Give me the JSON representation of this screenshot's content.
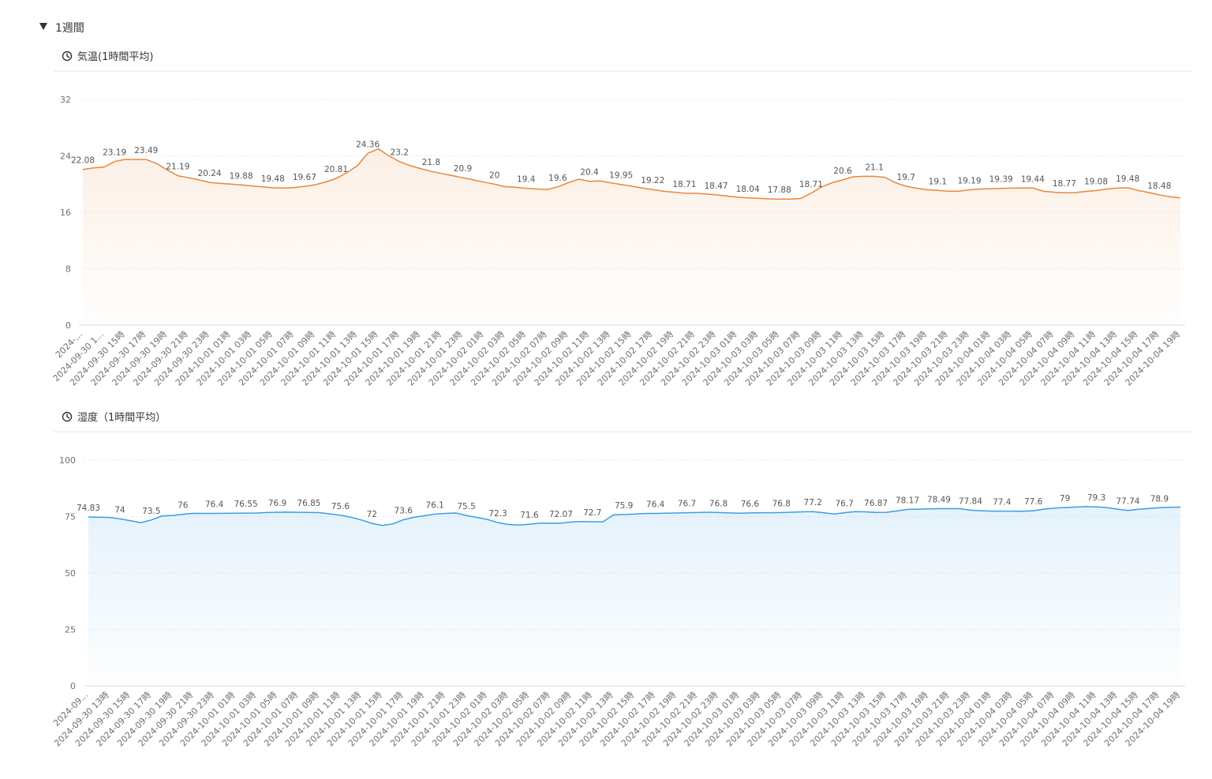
{
  "header": {
    "title": "1週間"
  },
  "chart_data": [
    {
      "type": "line",
      "title": "気温(1時間平均)",
      "color": "#e8873a",
      "ylim": [
        0,
        32
      ],
      "yticks": [
        0,
        8,
        16,
        24,
        32
      ],
      "grid": true,
      "categories": [
        "2024-...",
        null,
        "2024-09-30 1...",
        null,
        "2024-09-30 15時",
        null,
        "2024-09-30 17時",
        null,
        "2024-09-30 19時",
        null,
        "2024-09-30 21時",
        null,
        "2024-09-30 23時",
        null,
        "2024-10-01 01時",
        null,
        "2024-10-01 03時",
        null,
        "2024-10-01 05時",
        null,
        "2024-10-01 07時",
        null,
        "2024-10-01 09時",
        null,
        "2024-10-01 11時",
        null,
        "2024-10-01 13時",
        null,
        "2024-10-01 15時",
        null,
        "2024-10-01 17時",
        null,
        "2024-10-01 19時",
        null,
        "2024-10-01 21時",
        null,
        "2024-10-01 23時",
        null,
        "2024-10-02 01時",
        null,
        "2024-10-02 03時",
        null,
        "2024-10-02 05時",
        null,
        "2024-10-02 07時",
        null,
        "2024-10-02 09時",
        null,
        "2024-10-02 11時",
        null,
        "2024-10-02 13時",
        null,
        "2024-10-02 15時",
        null,
        "2024-10-02 17時",
        null,
        "2024-10-02 19時",
        null,
        "2024-10-02 21時",
        null,
        "2024-10-02 23時",
        null,
        "2024-10-03 01時",
        null,
        "2024-10-03 03時",
        null,
        "2024-10-03 05時",
        null,
        "2024-10-03 07時",
        null,
        "2024-10-03 09時",
        null,
        "2024-10-03 11時",
        null,
        "2024-10-03 13時",
        null,
        "2024-10-03 15時",
        null,
        "2024-10-03 17時",
        null,
        "2024-10-03 19時",
        null,
        "2024-10-03 21時",
        null,
        "2024-10-03 23時",
        null,
        "2024-10-04 01時",
        null,
        "2024-10-04 03時",
        null,
        "2024-10-04 05時",
        null,
        "2024-10-04 07時",
        null,
        "2024-10-04 09時",
        null,
        "2024-10-04 11時",
        null,
        "2024-10-04 13時",
        null,
        "2024-10-04 15時",
        null,
        "2024-10-04 17時",
        null,
        "2024-10-04 19時"
      ],
      "values": [
        22.08,
        22.3,
        22.4,
        23.19,
        23.5,
        23.5,
        23.49,
        22.9,
        22.0,
        21.19,
        20.9,
        20.6,
        20.24,
        20.1,
        20.0,
        19.88,
        19.75,
        19.6,
        19.48,
        19.45,
        19.5,
        19.67,
        19.9,
        20.3,
        20.81,
        21.6,
        22.6,
        24.36,
        25.0,
        24.0,
        23.2,
        22.61,
        22.2,
        21.8,
        21.5,
        21.2,
        20.9,
        20.6,
        20.29,
        20.0,
        19.64,
        19.55,
        19.4,
        19.3,
        19.23,
        19.6,
        20.2,
        20.7,
        20.4,
        20.45,
        20.19,
        19.95,
        19.7,
        19.45,
        19.22,
        19.0,
        18.85,
        18.71,
        18.7,
        18.6,
        18.47,
        18.3,
        18.15,
        18.04,
        17.98,
        17.9,
        17.88,
        17.88,
        17.95,
        18.71,
        19.6,
        20.2,
        20.6,
        21.03,
        21.1,
        21.1,
        20.96,
        20.2,
        19.7,
        19.41,
        19.2,
        19.1,
        19.0,
        19.0,
        19.19,
        19.3,
        19.35,
        19.39,
        19.42,
        19.44,
        19.44,
        19.0,
        18.85,
        18.77,
        18.8,
        18.95,
        19.08,
        19.3,
        19.45,
        19.48,
        19.1,
        18.8,
        18.48,
        18.2,
        18.05
      ]
    },
    {
      "type": "line",
      "title": "湿度（1時間平均）",
      "color": "#3a9ee4",
      "ylim": [
        0,
        100
      ],
      "yticks": [
        0,
        25,
        50,
        75,
        100
      ],
      "grid": true,
      "categories": [
        "2024-09...",
        null,
        "2024-09-30 13時",
        null,
        "2024-09-30 15時",
        null,
        "2024-09-30 17時",
        null,
        "2024-09-30 19時",
        null,
        "2024-09-30 21時",
        null,
        "2024-09-30 23時",
        null,
        "2024-10-01 01時",
        null,
        "2024-10-01 03時",
        null,
        "2024-10-01 05時",
        null,
        "2024-10-01 07時",
        null,
        "2024-10-01 09時",
        null,
        "2024-10-01 11時",
        null,
        "2024-10-01 13時",
        null,
        "2024-10-01 15時",
        null,
        "2024-10-01 17時",
        null,
        "2024-10-01 19時",
        null,
        "2024-10-01 21時",
        null,
        "2024-10-01 23時",
        null,
        "2024-10-02 01時",
        null,
        "2024-10-02 03時",
        null,
        "2024-10-02 05時",
        null,
        "2024-10-02 07時",
        null,
        "2024-10-02 09時",
        null,
        "2024-10-02 11時",
        null,
        "2024-10-02 13時",
        null,
        "2024-10-02 15時",
        null,
        "2024-10-02 17時",
        null,
        "2024-10-02 19時",
        null,
        "2024-10-02 21時",
        null,
        "2024-10-02 23時",
        null,
        "2024-10-03 01時",
        null,
        "2024-10-03 03時",
        null,
        "2024-10-03 05時",
        null,
        "2024-10-03 07時",
        null,
        "2024-10-03 09時",
        null,
        "2024-10-03 11時",
        null,
        "2024-10-03 13時",
        null,
        "2024-10-03 15時",
        null,
        "2024-10-03 17時",
        null,
        "2024-10-03 19時",
        null,
        "2024-10-03 21時",
        null,
        "2024-10-03 23時",
        null,
        "2024-10-04 01時",
        null,
        "2024-10-04 03時",
        null,
        "2024-10-04 05時",
        null,
        "2024-10-04 07時",
        null,
        "2024-10-04 09時",
        null,
        "2024-10-04 11時",
        null,
        "2024-10-04 13時",
        null,
        "2024-10-04 15時",
        null,
        "2024-10-04 17時",
        null,
        "2024-10-04 19時"
      ],
      "values": [
        74.83,
        74.7,
        74.6,
        74.0,
        73.14,
        72.3,
        73.5,
        75.26,
        75.5,
        76.0,
        76.44,
        76.4,
        76.4,
        76.42,
        76.5,
        76.55,
        76.57,
        76.8,
        76.9,
        76.97,
        76.9,
        76.85,
        76.74,
        76.2,
        75.6,
        74.71,
        73.5,
        72.0,
        71.08,
        71.8,
        73.6,
        74.66,
        75.4,
        76.1,
        76.4,
        76.56,
        75.5,
        74.6,
        73.74,
        72.3,
        71.5,
        71.21,
        71.6,
        72.07,
        72.07,
        72.07,
        72.6,
        72.79,
        72.7,
        72.7,
        75.74,
        75.9,
        76.1,
        76.35,
        76.4,
        76.5,
        76.58,
        76.7,
        76.8,
        76.93,
        76.8,
        76.6,
        76.52,
        76.6,
        76.71,
        76.71,
        76.8,
        76.93,
        77.1,
        77.2,
        76.7,
        76.17,
        76.7,
        77.2,
        77.1,
        76.87,
        76.9,
        77.5,
        78.17,
        78.3,
        78.4,
        78.49,
        78.5,
        78.5,
        77.84,
        77.6,
        77.4,
        77.4,
        77.4,
        77.39,
        77.6,
        78.3,
        78.79,
        79.0,
        79.2,
        79.41,
        79.3,
        79.0,
        78.3,
        77.74,
        78.2,
        78.6,
        78.9,
        79.12,
        79.2
      ]
    }
  ]
}
